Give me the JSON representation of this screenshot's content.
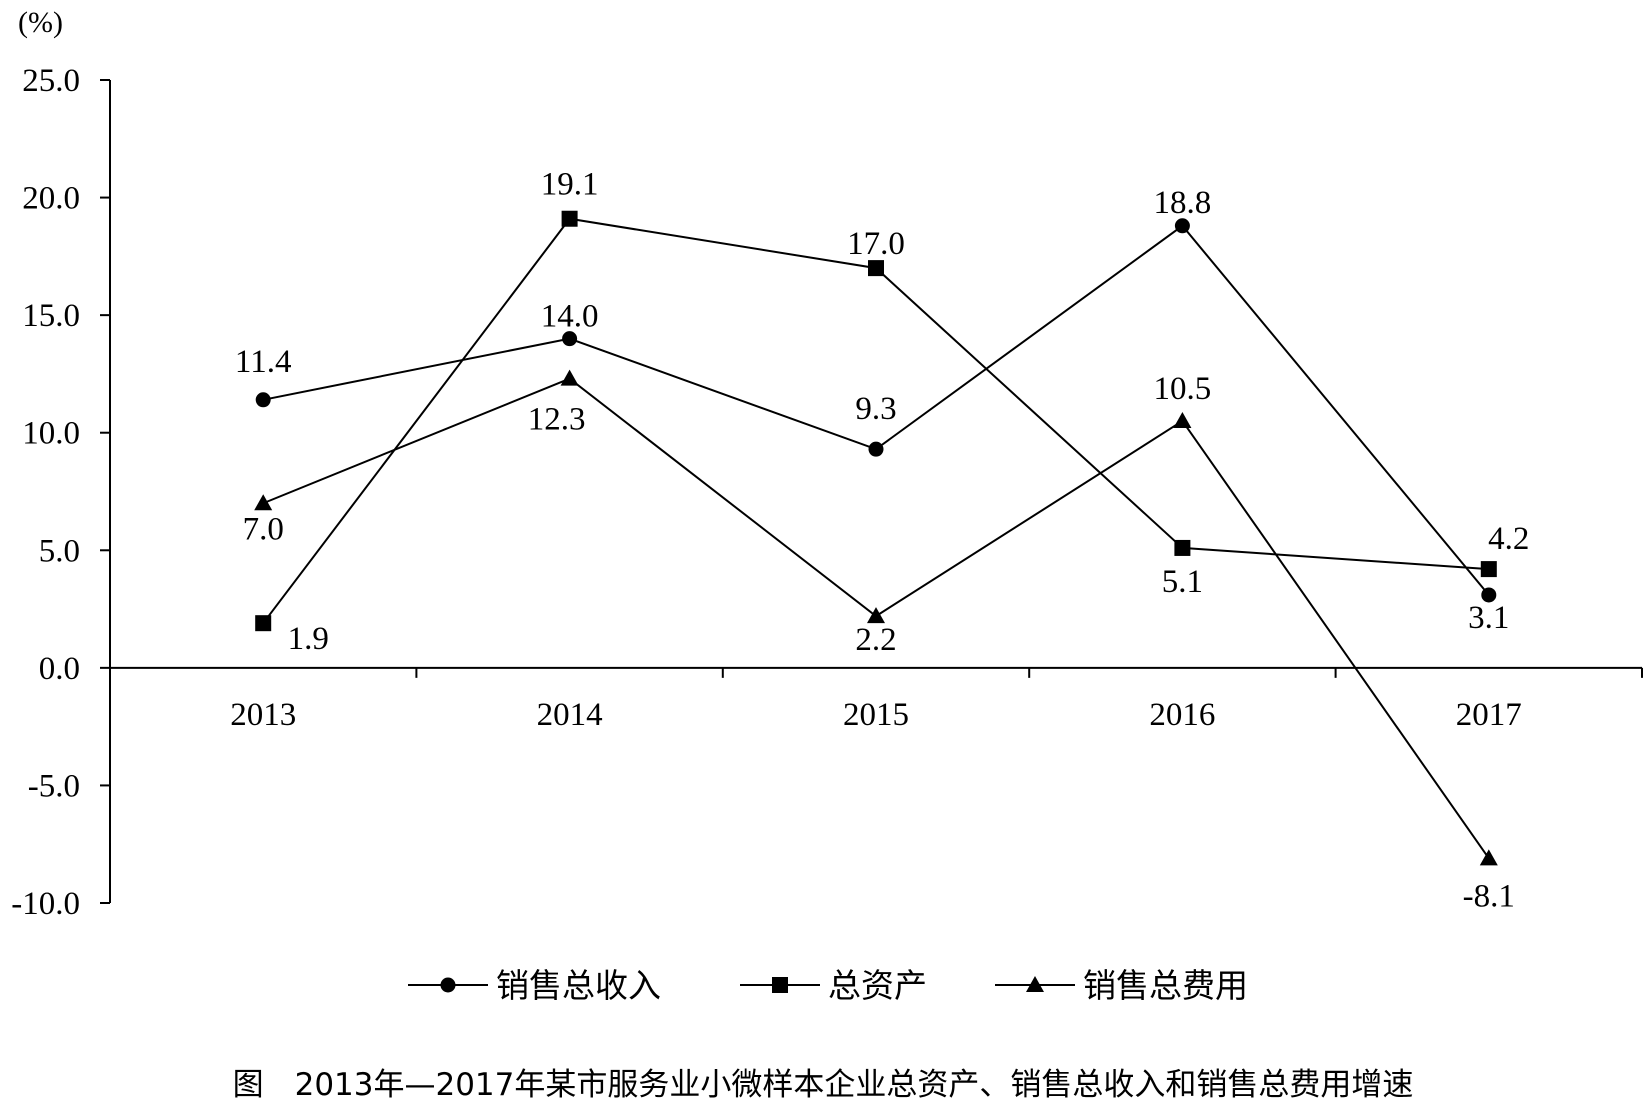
{
  "chart_data": {
    "type": "line",
    "title": "",
    "unit": "(%)",
    "categories": [
      "2013",
      "2014",
      "2015",
      "2016",
      "2017"
    ],
    "ylim": [
      -10,
      25
    ],
    "yticks": [
      25,
      20,
      15,
      10,
      5,
      0,
      -5,
      -10
    ],
    "ytick_labels": [
      "25.0",
      "20.0",
      "15.0",
      "10.0",
      "5.0",
      "0.0",
      "-5.0",
      "-10.0"
    ],
    "grid": false,
    "legend_position": "bottom",
    "series": [
      {
        "name": "销售总收入",
        "marker": "circle",
        "values": [
          11.4,
          14.0,
          9.3,
          18.8,
          3.1
        ],
        "labels": [
          "11.4",
          "14.0",
          "9.3",
          "18.8",
          "3.1"
        ]
      },
      {
        "name": "总资产",
        "marker": "square",
        "values": [
          1.9,
          19.1,
          17.0,
          5.1,
          4.2
        ],
        "labels": [
          "1.9",
          "19.1",
          "17.0",
          "5.1",
          "4.2"
        ]
      },
      {
        "name": "销售总费用",
        "marker": "triangle",
        "values": [
          7.0,
          12.3,
          2.2,
          10.5,
          -8.1
        ],
        "labels": [
          "7.0",
          "12.3",
          "2.2",
          "10.5",
          "-8.1"
        ]
      }
    ],
    "caption": "图　2013年—2017年某市服务业小微样本企业总资产、销售总收入和销售总费用增速"
  }
}
